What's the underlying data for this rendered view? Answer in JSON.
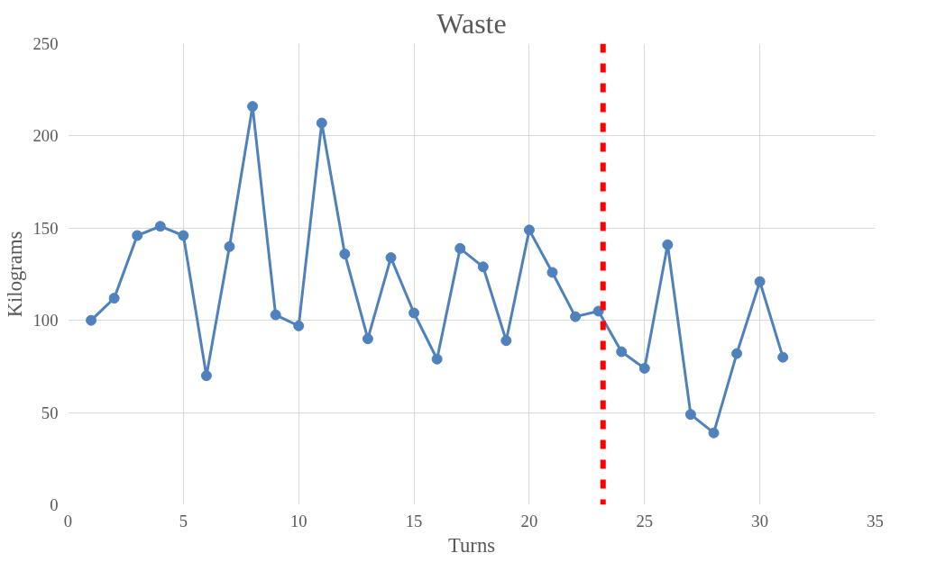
{
  "chart_data": {
    "type": "line",
    "title": "Waste",
    "xlabel": "Turns",
    "ylabel": "Kilograms",
    "x": [
      1,
      2,
      3,
      4,
      5,
      6,
      7,
      8,
      9,
      10,
      11,
      12,
      13,
      14,
      15,
      16,
      17,
      18,
      19,
      20,
      21,
      22,
      23,
      24,
      25,
      26,
      27,
      28,
      29,
      30,
      31
    ],
    "series": [
      {
        "color": "#4f81bd",
        "values": [
          100,
          112,
          146,
          151,
          146,
          70,
          140,
          216,
          103,
          97,
          207,
          136,
          90,
          134,
          104,
          79,
          139,
          129,
          89,
          149,
          126,
          102,
          105,
          83,
          74,
          141,
          49,
          39,
          82,
          121,
          80
        ]
      }
    ],
    "xlim": [
      0,
      35
    ],
    "xticks": [
      0,
      5,
      10,
      15,
      20,
      25,
      30,
      35
    ],
    "ylim": [
      0,
      250
    ],
    "yticks": [
      0,
      50,
      100,
      150,
      200,
      250
    ],
    "grid": true,
    "marker": "circle",
    "line_style": "solid",
    "ref_lines": [
      {
        "axis": "x",
        "value": 23.2,
        "color": "#ff0000",
        "line_style": "dashed"
      }
    ]
  }
}
